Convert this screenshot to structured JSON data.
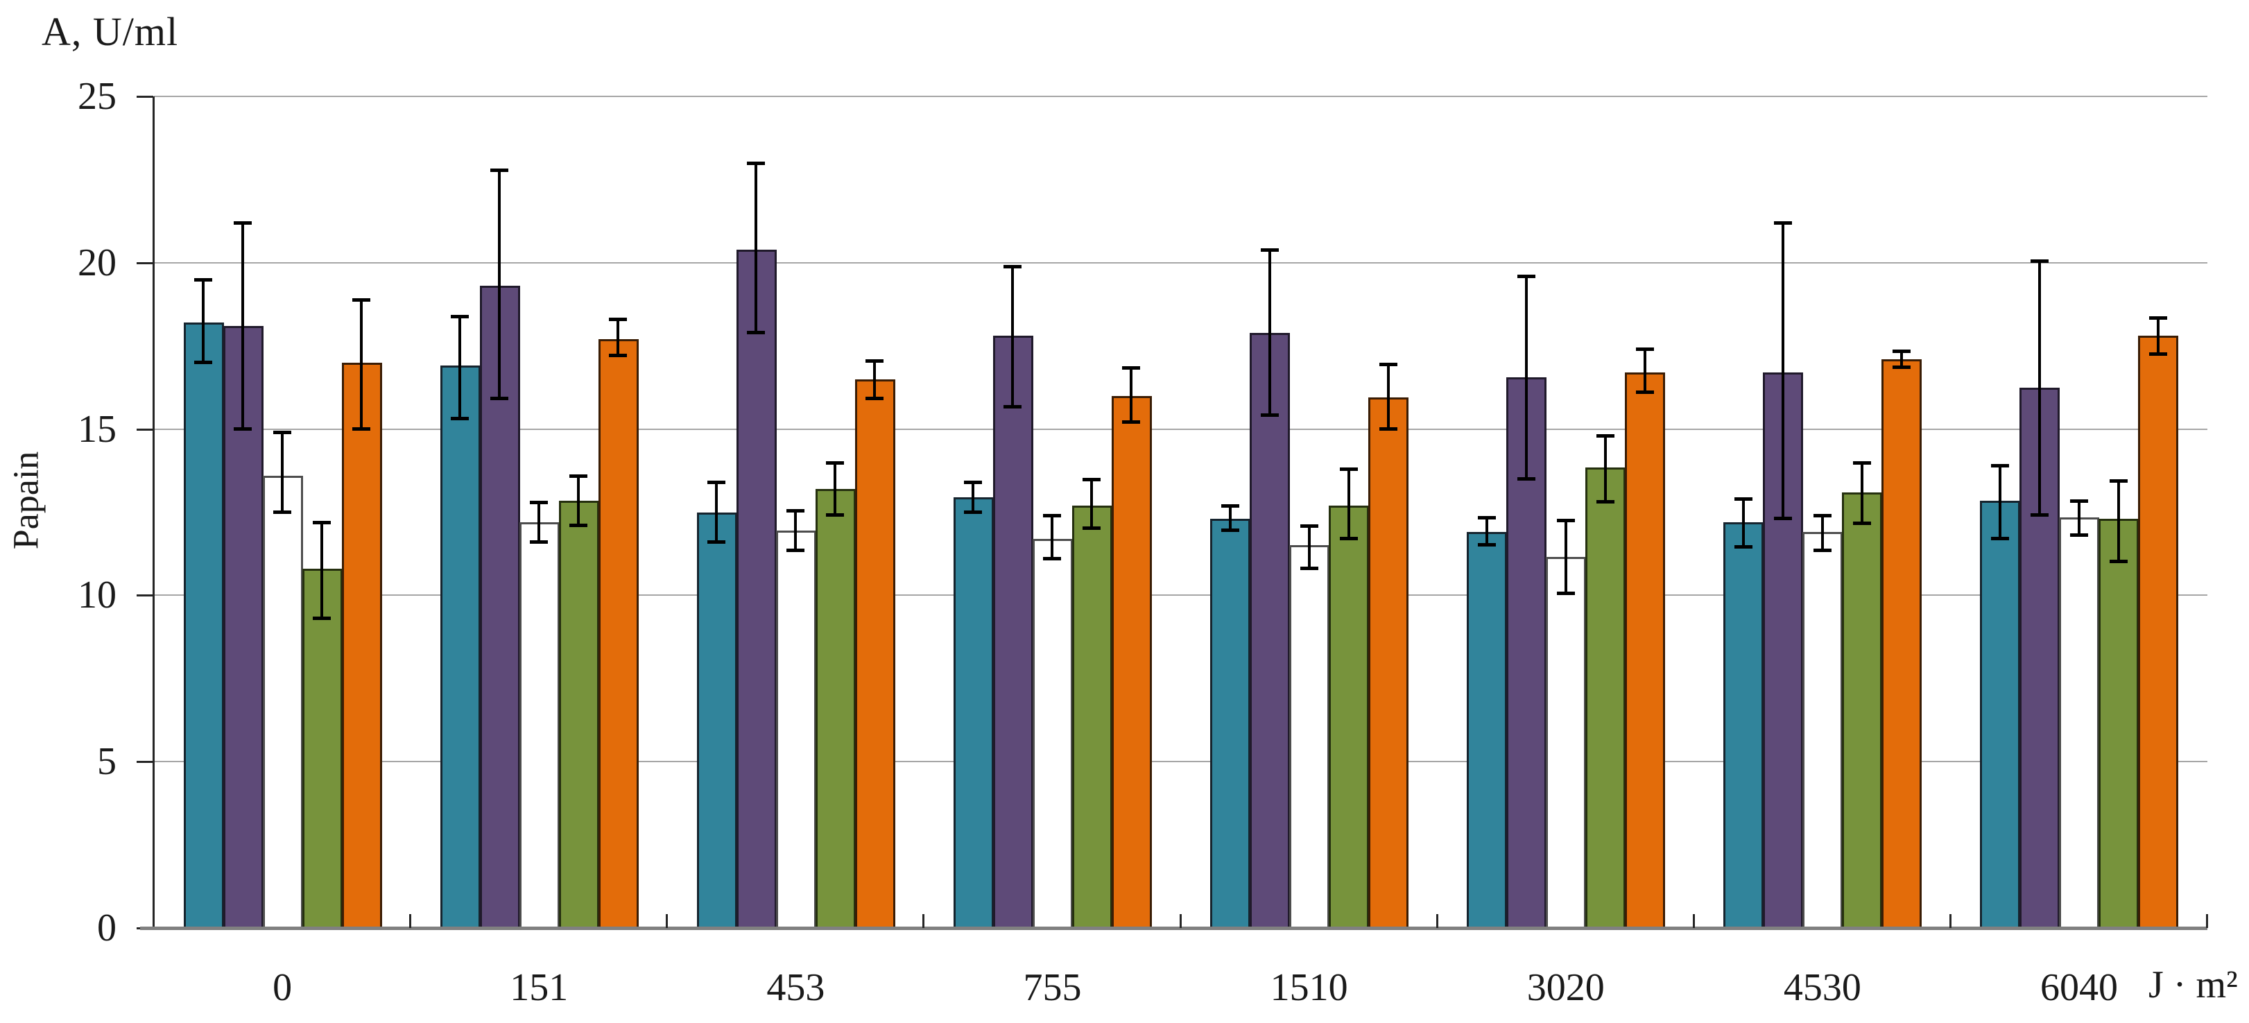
{
  "chart_data": {
    "type": "bar",
    "title": "A, U/ml",
    "ylabel": "Papain",
    "xlabel_unit": "J · m²",
    "ylim": [
      0,
      25
    ],
    "ytick_step": 5,
    "grid": true,
    "legend": "none",
    "y_tick_labels": [
      "0",
      "5",
      "10",
      "15",
      "20",
      "25"
    ],
    "categories": [
      "0",
      "151",
      "453",
      "755",
      "1510",
      "3020",
      "4530",
      "6040"
    ],
    "series": [
      {
        "name": "teal",
        "color": "#31849B",
        "border_color": "#16242E",
        "values": [
          18.2,
          16.9,
          12.5,
          12.95,
          12.3,
          11.9,
          12.2,
          12.85
        ],
        "err_hi": [
          19.5,
          18.4,
          13.4,
          13.4,
          12.7,
          12.35,
          12.9,
          13.9
        ],
        "err_lo": [
          17.0,
          15.3,
          11.6,
          12.5,
          11.95,
          11.5,
          11.45,
          11.7
        ]
      },
      {
        "name": "purple",
        "color": "#5E4A78",
        "border_color": "#201A2B",
        "values": [
          18.1,
          19.3,
          20.4,
          17.8,
          17.9,
          16.55,
          16.7,
          16.25
        ],
        "err_hi": [
          21.2,
          22.8,
          23.0,
          19.9,
          20.4,
          19.6,
          21.2,
          20.05
        ],
        "err_lo": [
          15.0,
          15.9,
          17.9,
          15.65,
          15.4,
          13.5,
          12.3,
          12.4
        ]
      },
      {
        "name": "white",
        "color": "#FFFFFF",
        "border_color": "#4D4D4D",
        "values": [
          13.6,
          12.2,
          11.95,
          11.7,
          11.5,
          11.15,
          11.9,
          12.35
        ],
        "err_hi": [
          14.9,
          12.8,
          12.55,
          12.4,
          12.1,
          12.25,
          12.4,
          12.85
        ],
        "err_lo": [
          12.5,
          11.6,
          11.35,
          11.1,
          10.8,
          10.05,
          11.35,
          11.8
        ]
      },
      {
        "name": "green",
        "color": "#77933C",
        "border_color": "#25300F",
        "values": [
          10.8,
          12.85,
          13.2,
          12.7,
          12.7,
          13.85,
          13.1,
          12.3
        ],
        "err_hi": [
          12.2,
          13.6,
          14.0,
          13.5,
          13.8,
          14.8,
          14.0,
          13.45
        ],
        "err_lo": [
          9.3,
          12.1,
          12.4,
          12.0,
          11.7,
          12.8,
          12.15,
          11.0
        ]
      },
      {
        "name": "orange",
        "color": "#E36C0A",
        "border_color": "#3A1D05",
        "values": [
          17.0,
          17.7,
          16.5,
          16.0,
          15.95,
          16.7,
          17.1,
          17.8
        ],
        "err_hi": [
          18.9,
          18.3,
          17.05,
          16.85,
          16.95,
          17.4,
          17.35,
          18.35
        ],
        "err_lo": [
          15.0,
          17.2,
          15.9,
          15.2,
          15.0,
          16.1,
          16.85,
          17.25
        ]
      }
    ]
  }
}
